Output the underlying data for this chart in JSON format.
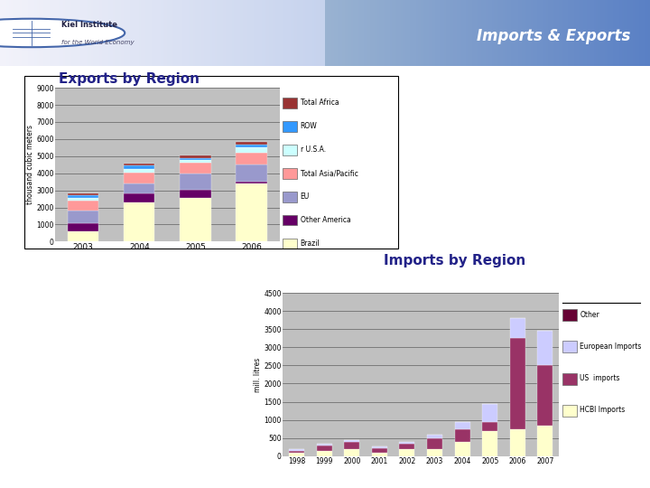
{
  "header_text": "Imports & Exports",
  "page_bg": "#ffffff",
  "header_bg_color": "#8aaac8",
  "exports_title": "Exports by Region",
  "exports_ylabel": "thousand cubic meters",
  "exports_years": [
    "2003",
    "2004",
    "2005",
    "2006"
  ],
  "exports_ylim": [
    0,
    9000
  ],
  "exports_yticks": [
    0,
    1000,
    2000,
    3000,
    4000,
    5000,
    6000,
    7000,
    8000,
    9000
  ],
  "exports_series_order": [
    "Brazil",
    "Other America",
    "EU",
    "Total Asia/Pacific",
    "USA",
    "ROW",
    "Total Africa"
  ],
  "exports_series": {
    "Brazil": [
      600,
      2300,
      2550,
      3400
    ],
    "Other America": [
      450,
      500,
      500,
      100
    ],
    "EU": [
      750,
      600,
      950,
      1000
    ],
    "Total Asia/Pacific": [
      600,
      650,
      600,
      700
    ],
    "USA": [
      150,
      200,
      200,
      300
    ],
    "ROW": [
      150,
      200,
      100,
      200
    ],
    "Total Africa": [
      100,
      100,
      150,
      150
    ]
  },
  "exports_colors": {
    "Brazil": "#ffffcc",
    "Other America": "#660066",
    "EU": "#9999cc",
    "Total Asia/Pacific": "#ff9999",
    "USA": "#ccffff",
    "ROW": "#3399ff",
    "Total Africa": "#993333"
  },
  "exports_legend_labels": [
    "Total Africa",
    "ROW",
    "r U.S.A.",
    "Total Asia/Pacific",
    "EU",
    "Other America",
    "Brazil"
  ],
  "imports_title": "Imports by Region",
  "imports_ylabel": "mill. litres",
  "imports_years": [
    "1998",
    "1999",
    "2000",
    "2001",
    "2002",
    "2003",
    "2004",
    "2005",
    "2006",
    "2007"
  ],
  "imports_ylim": [
    0,
    4500
  ],
  "imports_yticks": [
    0,
    500,
    1000,
    1500,
    2000,
    2500,
    3000,
    3500,
    4000,
    4500
  ],
  "imports_series_order": [
    "HCBI Imports",
    "US Imports",
    "European Imports",
    "Other"
  ],
  "imports_series": {
    "HCBI Imports": [
      100,
      150,
      200,
      100,
      200,
      200,
      400,
      700,
      750,
      850
    ],
    "US Imports": [
      50,
      150,
      200,
      130,
      150,
      300,
      350,
      250,
      2500,
      1650
    ],
    "European Imports": [
      50,
      50,
      50,
      50,
      50,
      100,
      200,
      500,
      550,
      950
    ],
    "Other": [
      0,
      0,
      0,
      0,
      0,
      0,
      0,
      0,
      0,
      0
    ]
  },
  "imports_colors": {
    "HCBI Imports": "#ffffcc",
    "US Imports": "#993366",
    "European Imports": "#ccccff",
    "Other": "#660033"
  },
  "imports_legend_labels": [
    "Other",
    "European Imports",
    "US  imports",
    "HCBI Imports"
  ],
  "chart_bg": "#c0c0c0"
}
